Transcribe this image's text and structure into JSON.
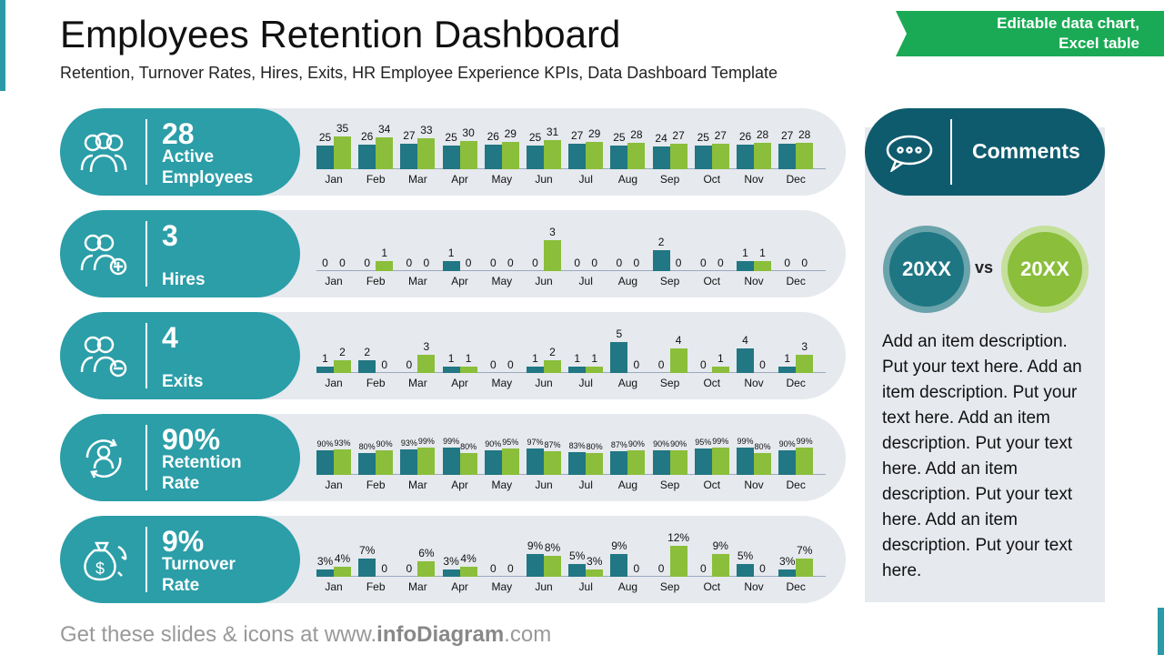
{
  "header": {
    "title": "Employees Retention Dashboard",
    "subtitle": "Retention, Turnover Rates, Hires, Exits, HR Employee Experience KPIs, Data Dashboard Template",
    "banner_line1": "Editable data chart,",
    "banner_line2": "Excel table"
  },
  "colors": {
    "series1": "#217783",
    "series2": "#8abe3b",
    "pill": "#2b9ea8"
  },
  "months": [
    "Jan",
    "Feb",
    "Mar",
    "Apr",
    "May",
    "Jun",
    "Jul",
    "Aug",
    "Sep",
    "Oct",
    "Nov",
    "Dec"
  ],
  "rows": [
    {
      "icon": "people-group-icon",
      "value": "28",
      "label": "Active Employees",
      "s1": [
        25,
        26,
        27,
        25,
        26,
        25,
        27,
        25,
        24,
        25,
        26,
        27
      ],
      "s2": [
        35,
        34,
        33,
        30,
        29,
        31,
        29,
        28,
        27,
        27,
        28,
        28
      ],
      "suffix": ""
    },
    {
      "icon": "person-add-icon",
      "value": "3",
      "label": "Hires",
      "s1": [
        0,
        0,
        0,
        1,
        0,
        0,
        0,
        0,
        2,
        0,
        1,
        0
      ],
      "s2": [
        0,
        1,
        0,
        0,
        0,
        3,
        0,
        0,
        0,
        0,
        1,
        0
      ],
      "suffix": ""
    },
    {
      "icon": "person-remove-icon",
      "value": "4",
      "label": "Exits",
      "s1": [
        1,
        2,
        0,
        1,
        0,
        1,
        1,
        5,
        0,
        0,
        4,
        1
      ],
      "s2": [
        2,
        0,
        3,
        1,
        0,
        2,
        1,
        0,
        4,
        1,
        0,
        3
      ],
      "suffix": ""
    },
    {
      "icon": "person-cycle-icon",
      "value": "90%",
      "label": "Retention Rate",
      "s1": [
        90,
        80,
        93,
        99,
        90,
        97,
        83,
        87,
        90,
        95,
        99,
        90
      ],
      "s2": [
        93,
        90,
        99,
        80,
        95,
        87,
        80,
        90,
        90,
        99,
        80,
        99
      ],
      "suffix": "%"
    },
    {
      "icon": "money-bag-cycle-icon",
      "value": "9%",
      "label": "Turnover Rate",
      "s1": [
        3,
        7,
        0,
        3,
        0,
        9,
        5,
        9,
        0,
        0,
        5,
        3
      ],
      "s2": [
        4,
        0,
        6,
        4,
        0,
        8,
        3,
        0,
        12,
        9,
        0,
        7
      ],
      "suffix": "%"
    }
  ],
  "comments": {
    "icon": "speech-bubble-icon",
    "title": "Comments",
    "left": "20XX",
    "vs": "vs",
    "right": "20XX",
    "text": "Add an item description. Put your text here. Add an item description. Put your text here. Add an item description. Put your text here. Add an item description. Put your text here. Add an item description. Put your text here."
  },
  "footer": {
    "prefix": "Get these slides & icons at www.",
    "brand": "infoDiagram",
    "suffix": ".com"
  }
}
